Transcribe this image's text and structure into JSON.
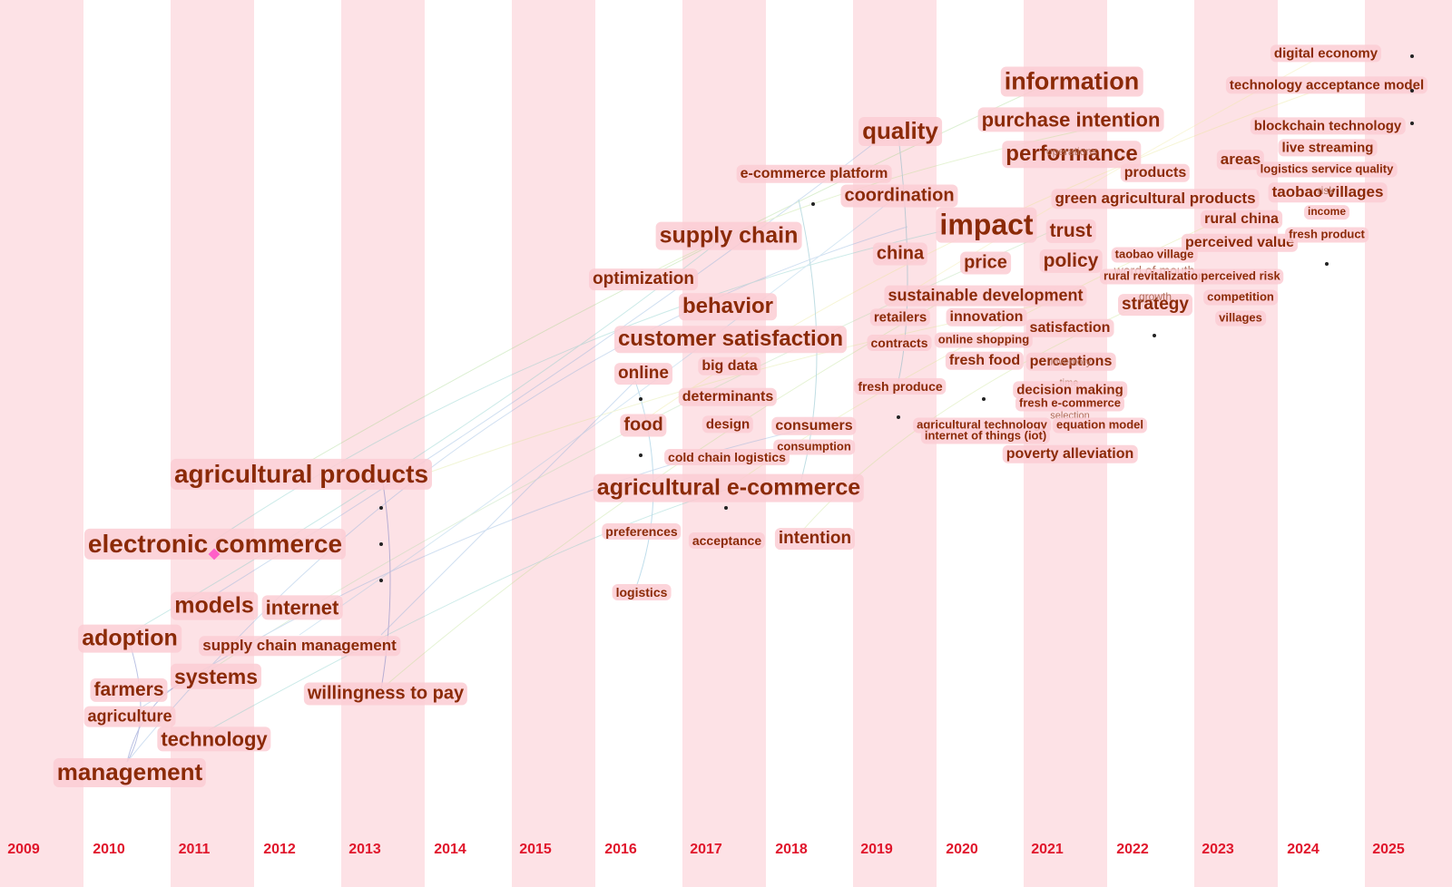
{
  "years": [
    "2009",
    "2010",
    "2011",
    "2012",
    "2013",
    "2014",
    "2015",
    "2016",
    "2017",
    "2018",
    "2019",
    "2020",
    "2021",
    "2022",
    "2023",
    "2024",
    "2025"
  ],
  "colors": {
    "band": "#fde2e6",
    "keyword_text": "#8b2a07",
    "keyword_bg": "#fbcdd3",
    "year_text": "#e0162b"
  },
  "keywords": {
    "management": "management",
    "technology": "technology",
    "agriculture": "agriculture",
    "farmers": "farmers",
    "systems": "systems",
    "adoption": "adoption",
    "supply_chain_management": "supply chain management",
    "models": "models",
    "internet": "internet",
    "electronic_commerce": "electronic commerce",
    "agricultural_products": "agricultural products",
    "willingness_to_pay": "willingness to pay",
    "logistics": "logistics",
    "preferences": "preferences",
    "agricultural_e_commerce": "agricultural e-commerce",
    "acceptance": "acceptance",
    "intention": "intention",
    "cold_chain_logistics": "cold chain logistics",
    "consumption": "consumption",
    "food": "food",
    "design": "design",
    "consumers": "consumers",
    "determinants": "determinants",
    "online": "online",
    "big_data": "big data",
    "customer_satisfaction": "customer satisfaction",
    "behavior": "behavior",
    "optimization": "optimization",
    "supply_chain": "supply chain",
    "e_commerce_platform": "e-commerce platform",
    "quality": "quality",
    "coordination": "coordination",
    "china": "china",
    "impact": "impact",
    "price": "price",
    "sustainable_development": "sustainable development",
    "retailers": "retailers",
    "innovation": "innovation",
    "contracts": "contracts",
    "online_shopping": "online shopping",
    "fresh_food": "fresh food",
    "fresh_produce": "fresh produce",
    "information": "information",
    "purchase_intention": "purchase intention",
    "performance": "performance",
    "operations": "operations",
    "trust": "trust",
    "policy": "policy",
    "satisfaction": "satisfaction",
    "perceptions": "perceptions",
    "inventory": "inventory",
    "decision_making": "decision making",
    "time": "time",
    "fresh_e_commerce": "fresh e-commerce",
    "selection": "selection",
    "agricultural_technology": "agricultural technology",
    "equation_model": "equation model",
    "internet_of_things": "internet of things (iot)",
    "poverty_alleviation": "poverty alleviation",
    "green_agricultural_products": "green agricultural products",
    "products": "products",
    "taobao_village": "taobao village",
    "word_of_mouth": "word of mouth",
    "rural_revitalization": "rural revitalization",
    "strategy": "strategy",
    "growth": "growth",
    "areas": "areas",
    "rural_china": "rural china",
    "perceived_value": "perceived value",
    "perceived_risk": "perceived risk",
    "competition": "competition",
    "villages": "villages",
    "digital_economy": "digital economy",
    "technology_acceptance_model": "technology acceptance model",
    "blockchain_technology": "blockchain technology",
    "live_streaming": "live streaming",
    "logistics_service_quality": "logistics service quality",
    "taobao_villages": "taobao villages",
    "risk": "risk",
    "income": "income",
    "fresh_product": "fresh product"
  }
}
